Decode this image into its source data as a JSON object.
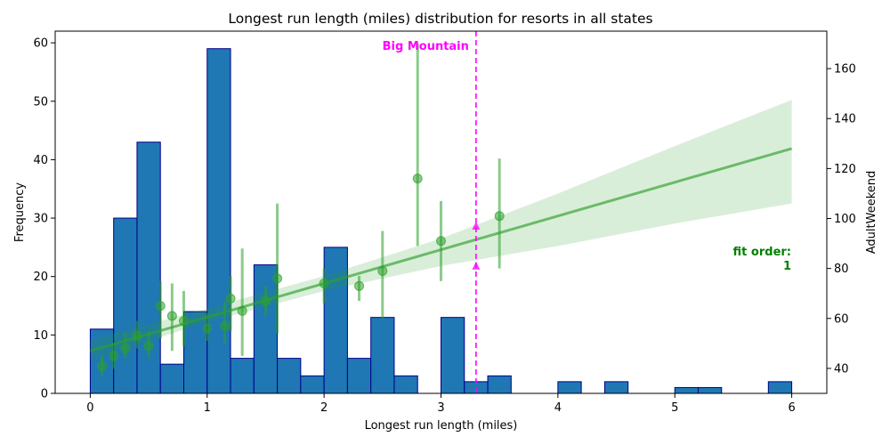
{
  "colors": {
    "bar_fill": "#1f77b4",
    "bar_edge": "#00008b",
    "regression": "#2ca02c",
    "marker_line": "#ff00ff",
    "fit_text": "#008000"
  },
  "chart_data": {
    "type": "bar",
    "title": "Longest run length (miles) distribution for resorts in all states",
    "xlabel": "Longest run length (miles)",
    "ylabel": "Frequency",
    "y2label": "AdultWeekend",
    "xlim": [
      -0.3,
      6.3
    ],
    "ylim": [
      0,
      62
    ],
    "y2lim": [
      30,
      175
    ],
    "x_ticks": [
      0,
      1,
      2,
      3,
      4,
      5,
      6
    ],
    "y_ticks": [
      0,
      10,
      20,
      30,
      40,
      50,
      60
    ],
    "y2_ticks": [
      40,
      60,
      80,
      100,
      120,
      140,
      160
    ],
    "grid": false,
    "histogram": {
      "bin_width": 0.2,
      "bins": [
        {
          "start": 0.0,
          "count": 11
        },
        {
          "start": 0.2,
          "count": 30
        },
        {
          "start": 0.4,
          "count": 43
        },
        {
          "start": 0.6,
          "count": 5
        },
        {
          "start": 0.8,
          "count": 14
        },
        {
          "start": 1.0,
          "count": 59
        },
        {
          "start": 1.2,
          "count": 6
        },
        {
          "start": 1.4,
          "count": 22
        },
        {
          "start": 1.6,
          "count": 6
        },
        {
          "start": 1.8,
          "count": 3
        },
        {
          "start": 2.0,
          "count": 25
        },
        {
          "start": 2.2,
          "count": 6
        },
        {
          "start": 2.4,
          "count": 13
        },
        {
          "start": 2.6,
          "count": 3
        },
        {
          "start": 3.0,
          "count": 13
        },
        {
          "start": 3.2,
          "count": 2
        },
        {
          "start": 3.4,
          "count": 3
        },
        {
          "start": 4.0,
          "count": 2
        },
        {
          "start": 4.4,
          "count": 2
        },
        {
          "start": 5.0,
          "count": 1
        },
        {
          "start": 5.2,
          "count": 1
        },
        {
          "start": 5.8,
          "count": 2
        }
      ]
    },
    "regression_points": [
      {
        "x": 0.1,
        "y": 41,
        "lo": 37,
        "hi": 45
      },
      {
        "x": 0.2,
        "y": 45,
        "lo": 40,
        "hi": 50
      },
      {
        "x": 0.3,
        "y": 48,
        "lo": 44,
        "hi": 54
      },
      {
        "x": 0.4,
        "y": 53,
        "lo": 48,
        "hi": 59
      },
      {
        "x": 0.5,
        "y": 49,
        "lo": 44,
        "hi": 55
      },
      {
        "x": 0.6,
        "y": 65,
        "lo": 52,
        "hi": 75
      },
      {
        "x": 0.7,
        "y": 61,
        "lo": 47,
        "hi": 74
      },
      {
        "x": 0.8,
        "y": 59,
        "lo": 49,
        "hi": 71
      },
      {
        "x": 1.0,
        "y": 56,
        "lo": 51,
        "hi": 62
      },
      {
        "x": 1.15,
        "y": 57,
        "lo": 50,
        "hi": 67
      },
      {
        "x": 1.2,
        "y": 68,
        "lo": 55,
        "hi": 77
      },
      {
        "x": 1.3,
        "y": 63,
        "lo": 45,
        "hi": 88
      },
      {
        "x": 1.5,
        "y": 67,
        "lo": 61,
        "hi": 73
      },
      {
        "x": 1.6,
        "y": 76,
        "lo": 54,
        "hi": 106
      },
      {
        "x": 2.0,
        "y": 74,
        "lo": 66,
        "hi": 80
      },
      {
        "x": 2.3,
        "y": 73,
        "lo": 67,
        "hi": 77
      },
      {
        "x": 2.5,
        "y": 79,
        "lo": 60,
        "hi": 95
      },
      {
        "x": 2.8,
        "y": 116,
        "lo": 89,
        "hi": 170
      },
      {
        "x": 3.0,
        "y": 91,
        "lo": 75,
        "hi": 107
      },
      {
        "x": 3.5,
        "y": 101,
        "lo": 80,
        "hi": 124
      }
    ],
    "regression_line": {
      "x0": 0.0,
      "y0": 47,
      "x1": 6.0,
      "y1": 128
    },
    "confidence_band": [
      {
        "x": 0.0,
        "lo": 43.5,
        "hi": 51.5
      },
      {
        "x": 1.0,
        "lo": 58.5,
        "hi": 64.0
      },
      {
        "x": 2.0,
        "lo": 71.0,
        "hi": 77.0
      },
      {
        "x": 3.0,
        "lo": 81.0,
        "hi": 92.0
      },
      {
        "x": 4.0,
        "lo": 89.0,
        "hi": 110.0
      },
      {
        "x": 5.0,
        "lo": 98.0,
        "hi": 129.0
      },
      {
        "x": 6.0,
        "lo": 106.0,
        "hi": 147.5
      }
    ],
    "marker": {
      "x": 3.3,
      "label": "Big Mountain",
      "triangle_y2_values": [
        81,
        97
      ]
    },
    "fit_annotation": {
      "line1": "fit order:",
      "line2": "1"
    }
  }
}
